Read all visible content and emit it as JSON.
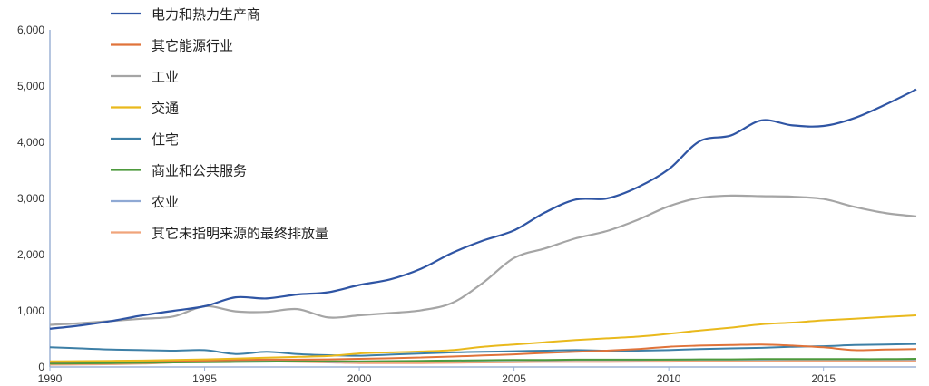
{
  "chart_data": {
    "type": "line",
    "title": "",
    "xlabel": "",
    "ylabel": "",
    "xlim": [
      1990,
      2018
    ],
    "ylim": [
      0,
      6000
    ],
    "x_ticks": [
      "1990",
      "1995",
      "2000",
      "2005",
      "2010",
      "2015"
    ],
    "y_ticks": [
      "0",
      "1,000",
      "2,000",
      "3,000",
      "4,000",
      "5,000",
      "6,000"
    ],
    "grid": false,
    "legend_position": "top-left",
    "x": [
      1990,
      1991,
      1992,
      1993,
      1994,
      1995,
      1996,
      1997,
      1998,
      1999,
      2000,
      2001,
      2002,
      2003,
      2004,
      2005,
      2006,
      2007,
      2008,
      2009,
      2010,
      2011,
      2012,
      2013,
      2014,
      2015,
      2016,
      2017,
      2018
    ],
    "series": [
      {
        "name": "电力和热力生产商",
        "color": "#2F55A4",
        "values": [
          680,
          740,
          820,
          920,
          1000,
          1080,
          1240,
          1220,
          1290,
          1330,
          1460,
          1560,
          1750,
          2030,
          2250,
          2430,
          2750,
          2980,
          3000,
          3200,
          3520,
          4020,
          4120,
          4390,
          4300,
          4290,
          4430,
          4670,
          4940
        ]
      },
      {
        "name": "其它能源行业",
        "color": "#E0733A",
        "values": [
          90,
          95,
          100,
          105,
          110,
          115,
          125,
          130,
          130,
          135,
          145,
          155,
          170,
          185,
          205,
          225,
          250,
          270,
          290,
          320,
          360,
          380,
          390,
          400,
          380,
          350,
          300,
          310,
          320
        ]
      },
      {
        "name": "工业",
        "color": "#A5A5A5",
        "values": [
          750,
          780,
          820,
          860,
          900,
          1080,
          990,
          980,
          1030,
          880,
          920,
          960,
          1010,
          1140,
          1500,
          1940,
          2110,
          2290,
          2420,
          2620,
          2860,
          3010,
          3050,
          3040,
          3030,
          2990,
          2850,
          2740,
          2680
        ]
      },
      {
        "name": "交通",
        "color": "#E9B91C",
        "values": [
          100,
          105,
          110,
          115,
          125,
          135,
          150,
          165,
          180,
          195,
          240,
          260,
          275,
          300,
          360,
          400,
          440,
          480,
          510,
          540,
          590,
          650,
          700,
          760,
          790,
          830,
          860,
          890,
          920
        ]
      },
      {
        "name": "住宅",
        "color": "#3D7FA6",
        "values": [
          350,
          330,
          310,
          300,
          290,
          300,
          230,
          270,
          230,
          210,
          200,
          220,
          240,
          260,
          270,
          280,
          290,
          300,
          290,
          290,
          300,
          320,
          330,
          340,
          360,
          370,
          390,
          400,
          410
        ]
      },
      {
        "name": "商业和公共服务",
        "color": "#4E9A3D",
        "values": [
          60,
          65,
          70,
          75,
          80,
          85,
          90,
          95,
          100,
          100,
          100,
          105,
          110,
          115,
          120,
          125,
          125,
          130,
          130,
          130,
          130,
          135,
          135,
          140,
          140,
          140,
          140,
          140,
          145
        ]
      },
      {
        "name": "农业",
        "color": "#8FA9D4",
        "values": [
          80,
          85,
          90,
          95,
          100,
          110,
          100,
          105,
          110,
          90,
          95,
          100,
          105,
          110,
          115,
          120,
          120,
          125,
          125,
          125,
          130,
          130,
          130,
          130,
          135,
          135,
          135,
          135,
          135
        ]
      },
      {
        "name": "其它未指明来源的最终排放量",
        "color": "#F0A47B",
        "values": [
          40,
          45,
          50,
          60,
          80,
          100,
          110,
          100,
          90,
          80,
          70,
          70,
          70,
          75,
          80,
          85,
          90,
          90,
          90,
          95,
          95,
          100,
          100,
          100,
          105,
          105,
          110,
          110,
          110
        ]
      }
    ]
  }
}
